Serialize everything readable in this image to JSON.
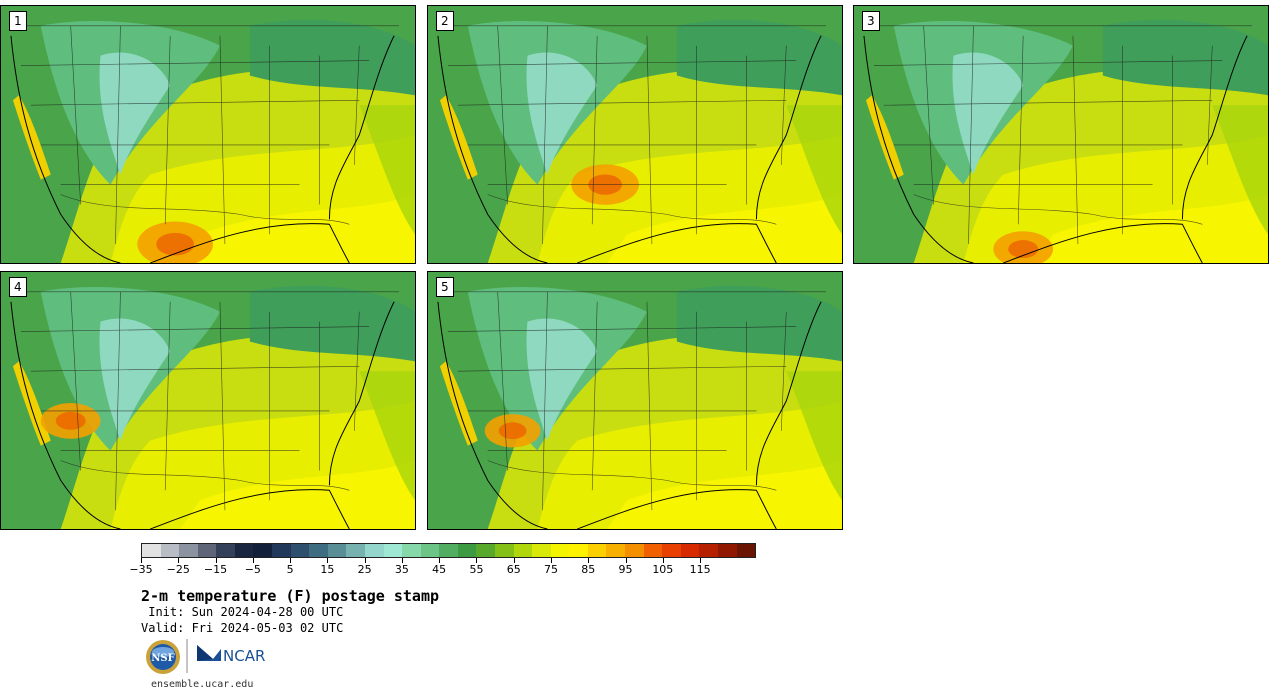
{
  "panels": [
    {
      "label": "1"
    },
    {
      "label": "2"
    },
    {
      "label": "3"
    },
    {
      "label": "4"
    },
    {
      "label": "5"
    }
  ],
  "colorbar": {
    "colors": [
      "#e2e2e2",
      "#b8bcc4",
      "#8c93a0",
      "#5e6578",
      "#34405a",
      "#1a2540",
      "#12203a",
      "#22385a",
      "#2e506e",
      "#3e6c80",
      "#5a8e96",
      "#78b2b0",
      "#94d6cc",
      "#9ee8d4",
      "#86d8a8",
      "#6cc487",
      "#52ad62",
      "#3c9a40",
      "#58a82c",
      "#84c018",
      "#b0d60c",
      "#d8e808",
      "#f4f400",
      "#fff200",
      "#fbd000",
      "#f8b000",
      "#f49000",
      "#f06000",
      "#e84000",
      "#d82a00",
      "#b42000",
      "#901800",
      "#6a1404"
    ],
    "tick_labels": [
      "−35",
      "−25",
      "−15",
      "−5",
      "5",
      "15",
      "25",
      "35",
      "45",
      "55",
      "65",
      "75",
      "85",
      "95",
      "105",
      "115"
    ]
  },
  "title": "2-m temperature (F) postage stamp",
  "init": " Init: Sun 2024-04-28 00 UTC",
  "valid": "Valid: Fri 2024-05-03 02 UTC",
  "logos": {
    "nsf": "NSF",
    "ncar": "NCAR"
  },
  "footer_url": "ensemble.ucar.edu"
}
